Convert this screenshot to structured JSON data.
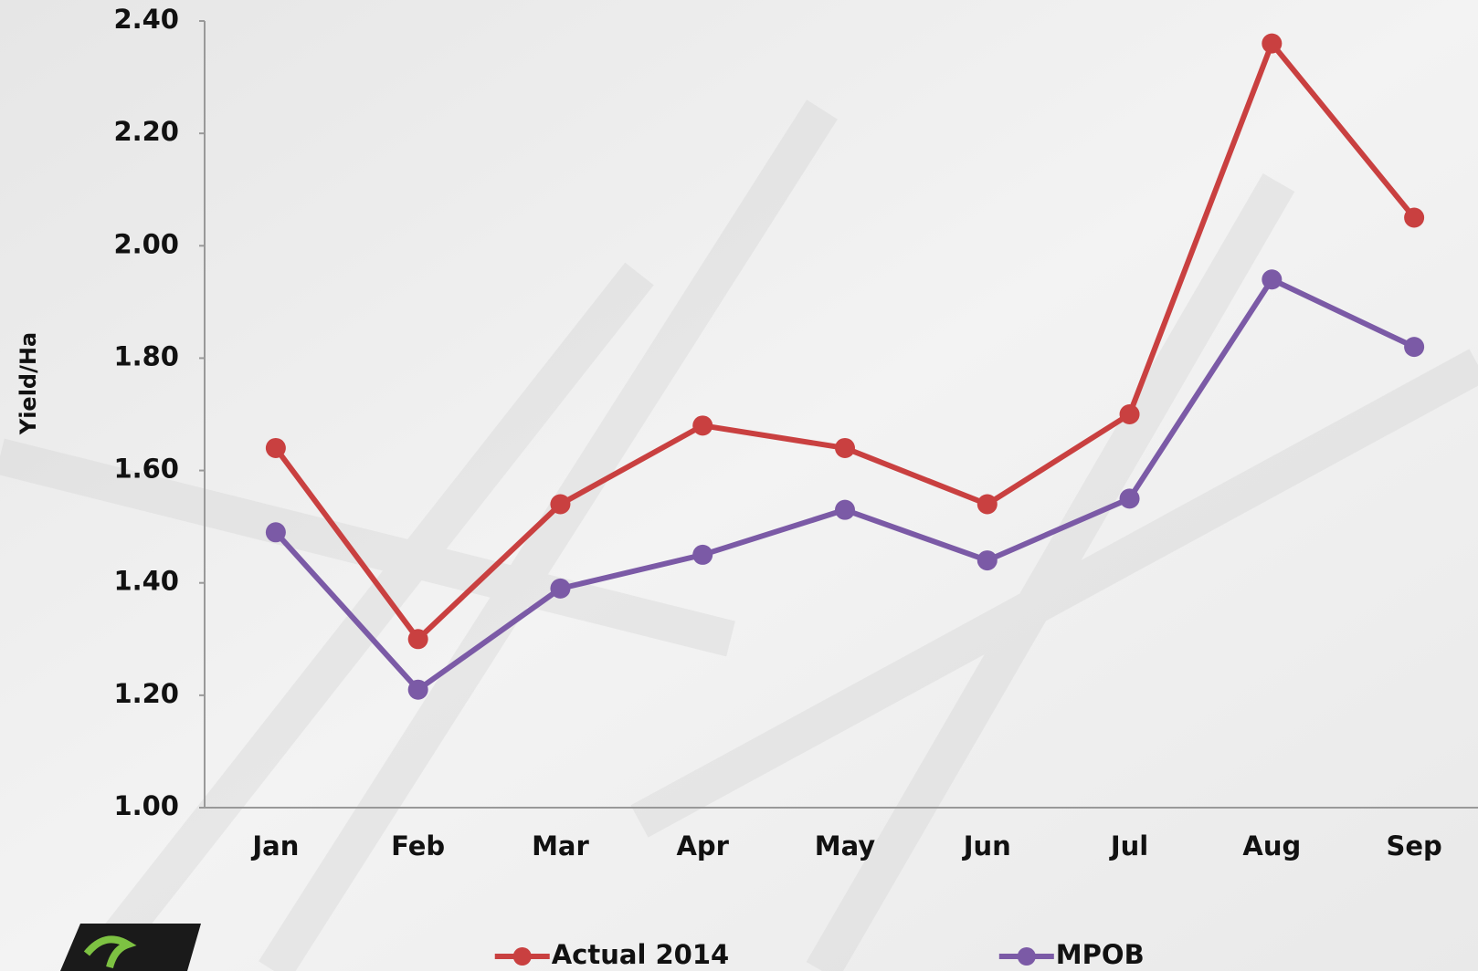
{
  "chart_data": {
    "type": "line",
    "y_label": "Yield/Ha",
    "categories": [
      "Jan",
      "Feb",
      "Mar",
      "Apr",
      "May",
      "Jun",
      "Jul",
      "Aug",
      "Sep"
    ],
    "series": [
      {
        "name": "Actual 2014",
        "color": "#c94040",
        "values": [
          1.64,
          1.3,
          1.54,
          1.68,
          1.64,
          1.54,
          1.7,
          2.36,
          2.05
        ]
      },
      {
        "name": "MPOB",
        "color": "#7b5aa6",
        "values": [
          1.49,
          1.21,
          1.39,
          1.45,
          1.53,
          1.44,
          1.55,
          1.94,
          1.82
        ]
      }
    ],
    "ylim": [
      1.0,
      2.4
    ],
    "yticks": [
      {
        "value": 1.0,
        "label": "1.00"
      },
      {
        "value": 1.2,
        "label": "1.20"
      },
      {
        "value": 1.4,
        "label": "1.40"
      },
      {
        "value": 1.6,
        "label": "1.60"
      },
      {
        "value": 1.8,
        "label": "1.80"
      },
      {
        "value": 2.0,
        "label": "2.00"
      },
      {
        "value": 2.2,
        "label": "2.20"
      },
      {
        "value": 2.4,
        "label": "2.40"
      }
    ],
    "grid": false
  }
}
